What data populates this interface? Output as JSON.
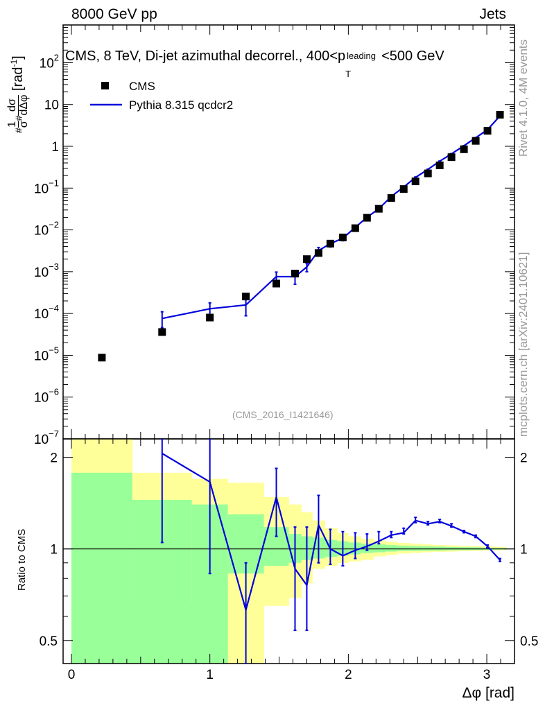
{
  "header": {
    "left": "8000 GeV pp",
    "right": "Jets",
    "title_main": "CMS, 8 TeV, Di-jet azimuthal decorrel., 400<p",
    "title_sup": "leading",
    "title_sub": "T",
    "title_tail": "<500 GeV"
  },
  "side_labels": {
    "rivet": "Rivet 4.1.0,  4M events",
    "url": "mcplots.cern.ch [arXiv:2401.10621]"
  },
  "analysis_id": "(CMS_2016_I1421646)",
  "legend": {
    "data_label": "CMS",
    "mc_label": "Pythia 8.315 qcdcr2"
  },
  "colors": {
    "data": "#000000",
    "mc": "#0000dd",
    "band_inner": "#99ff99",
    "band_outer": "#ffff99",
    "side_text": "#999999"
  },
  "chart_data": [
    {
      "type": "scatter",
      "panel": "main",
      "yscale": "log",
      "ylabel_parts": [
        "#",
        "1",
        "σ",
        "#",
        "dσ",
        "dΔφ",
        "[rad",
        "-1",
        "]"
      ],
      "xlim": [
        -0.06,
        3.2
      ],
      "ylim": [
        1e-07,
        800
      ],
      "y_ticks": [
        {
          "v": 100.0,
          "base": "10",
          "exp": "2"
        },
        {
          "v": 10.0,
          "base": "10",
          "exp": ""
        },
        {
          "v": 1.0,
          "base": "1",
          "exp": ""
        },
        {
          "v": 0.1,
          "base": "10",
          "exp": "−1"
        },
        {
          "v": 0.01,
          "base": "10",
          "exp": "−2"
        },
        {
          "v": 0.001,
          "base": "10",
          "exp": "−3"
        },
        {
          "v": 0.0001,
          "base": "10",
          "exp": "−4"
        },
        {
          "v": 1e-05,
          "base": "10",
          "exp": "−5"
        },
        {
          "v": 1e-06,
          "base": "10",
          "exp": "−6"
        },
        {
          "v": 1e-07,
          "base": "10",
          "exp": "−7"
        }
      ],
      "series": [
        {
          "name": "CMS",
          "style": "markers",
          "x": [
            0.22,
            0.655,
            1.0,
            1.26,
            1.48,
            1.615,
            1.7,
            1.785,
            1.87,
            1.96,
            2.05,
            2.135,
            2.22,
            2.31,
            2.4,
            2.485,
            2.575,
            2.66,
            2.745,
            2.835,
            2.92,
            3.005,
            3.095
          ],
          "y": [
            8.8e-06,
            3.6e-05,
            8e-05,
            0.000255,
            0.00052,
            0.0009,
            0.002,
            0.0028,
            0.0047,
            0.0066,
            0.011,
            0.0195,
            0.032,
            0.058,
            0.095,
            0.145,
            0.225,
            0.35,
            0.55,
            0.85,
            1.35,
            2.35,
            5.7
          ]
        },
        {
          "name": "Pythia 8.315 qcdcr2",
          "style": "line",
          "x": [
            0.655,
            1.0,
            1.26,
            1.48,
            1.615,
            1.7,
            1.785,
            1.87,
            1.96,
            2.05,
            2.135,
            2.22,
            2.31,
            2.4,
            2.485,
            2.575,
            2.66,
            2.745,
            2.835,
            2.92,
            3.005,
            3.095
          ],
          "y": [
            7.6e-05,
            0.00013,
            0.00016,
            0.00076,
            0.00076,
            0.0013,
            0.0032,
            0.0047,
            0.0063,
            0.0115,
            0.02,
            0.032,
            0.063,
            0.106,
            0.18,
            0.28,
            0.44,
            0.66,
            1.03,
            1.6,
            2.5,
            5.3
          ],
          "ylow": [
            4.6e-05,
            7.8e-05,
            8.8e-05,
            0.00055,
            0.0005,
            0.001,
            0.0025,
            0.0039,
            0.0055,
            0.0102,
            0.0187,
            0.03,
            0.06,
            0.102,
            0.175,
            0.275,
            0.435,
            0.65,
            1.02,
            1.58,
            2.47,
            5.25
          ],
          "yhigh": [
            0.00011,
            0.00018,
            0.00023,
            0.00098,
            0.001,
            0.0016,
            0.0038,
            0.0054,
            0.0071,
            0.0128,
            0.0213,
            0.034,
            0.066,
            0.11,
            0.185,
            0.285,
            0.445,
            0.67,
            1.04,
            1.62,
            2.53,
            5.35
          ]
        }
      ]
    },
    {
      "type": "line",
      "panel": "ratio",
      "yscale": "log",
      "ylabel": "Ratio to CMS",
      "xlabel": "Δφ [rad]",
      "xlim": [
        -0.06,
        3.2
      ],
      "ylim": [
        0.42,
        2.3
      ],
      "x_ticks": [
        0,
        1,
        2,
        3
      ],
      "y_ticks": [
        {
          "v": 2,
          "label": "2"
        },
        {
          "v": 1,
          "label": "1"
        },
        {
          "v": 0.5,
          "label": "0.5"
        }
      ],
      "reference_line": 1.0,
      "bands": {
        "x_edges": [
          0.0,
          0.44,
          0.87,
          1.13,
          1.39,
          1.57,
          1.66,
          1.74,
          1.83,
          1.92,
          2.0,
          2.09,
          2.18,
          2.27,
          2.35,
          2.44,
          2.53,
          2.61,
          2.7,
          2.79,
          2.88,
          2.96,
          3.05,
          3.14
        ],
        "inner_low": [
          0.3,
          0.3,
          0.3,
          0.83,
          0.88,
          0.9,
          0.92,
          0.93,
          0.94,
          0.95,
          0.96,
          0.97,
          0.975,
          0.98,
          0.985,
          0.985,
          0.987,
          0.988,
          0.99,
          0.991,
          0.992,
          0.993,
          0.995
        ],
        "inner_high": [
          1.78,
          1.45,
          1.4,
          1.3,
          1.18,
          1.12,
          1.1,
          1.09,
          1.07,
          1.06,
          1.05,
          1.04,
          1.035,
          1.03,
          1.025,
          1.022,
          1.02,
          1.018,
          1.015,
          1.013,
          1.012,
          1.01,
          1.008
        ],
        "outer_low": [
          0.3,
          0.66,
          0.66,
          0.3,
          0.65,
          0.69,
          0.77,
          0.86,
          0.88,
          0.9,
          0.91,
          0.92,
          0.945,
          0.955,
          0.965,
          0.97,
          0.975,
          0.978,
          0.98,
          0.983,
          0.985,
          0.987,
          0.99
        ],
        "outer_high": [
          2.5,
          1.78,
          1.7,
          1.65,
          1.48,
          1.4,
          1.32,
          1.24,
          1.17,
          1.13,
          1.1,
          1.08,
          1.065,
          1.055,
          1.047,
          1.04,
          1.035,
          1.03,
          1.027,
          1.024,
          1.022,
          1.02,
          1.016
        ]
      },
      "series": [
        {
          "name": "Pythia 8.315 qcdcr2 / CMS",
          "x": [
            0.655,
            1.0,
            1.26,
            1.48,
            1.615,
            1.7,
            1.785,
            1.87,
            1.96,
            2.05,
            2.135,
            2.22,
            2.31,
            2.4,
            2.485,
            2.575,
            2.66,
            2.745,
            2.835,
            2.92,
            3.005,
            3.095
          ],
          "y": [
            2.06,
            1.66,
            0.63,
            1.48,
            0.86,
            0.76,
            1.2,
            1.0,
            0.95,
            0.99,
            1.02,
            1.06,
            1.11,
            1.13,
            1.24,
            1.21,
            1.23,
            1.19,
            1.14,
            1.1,
            1.02,
            0.92
          ],
          "ylow": [
            1.05,
            0.83,
            0.35,
            1.1,
            0.54,
            0.54,
            0.9,
            0.89,
            0.88,
            0.93,
            0.99,
            1.04,
            1.09,
            1.12,
            1.22,
            1.2,
            1.22,
            1.18,
            1.13,
            1.09,
            1.01,
            0.91
          ],
          "yhigh": [
            2.5,
            2.35,
            0.9,
            1.84,
            1.18,
            1.18,
            1.5,
            1.16,
            1.14,
            1.13,
            1.12,
            1.14,
            1.14,
            1.17,
            1.27,
            1.23,
            1.25,
            1.21,
            1.15,
            1.11,
            1.03,
            0.93
          ]
        }
      ]
    }
  ]
}
